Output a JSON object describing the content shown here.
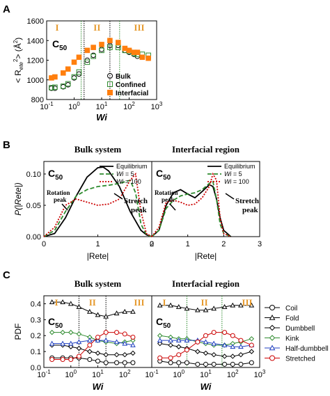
{
  "chart_data": [
    {
      "panel": "A",
      "type": "scatter",
      "ylabel_lines": [
        "< R",
        "ete",
        "2",
        "> (",
        "Å",
        "2",
        ")"
      ],
      "xlabel": "Wi",
      "xscale": "log",
      "xlim": [
        0.1,
        1000
      ],
      "ylim": [
        800,
        1600
      ],
      "yticks": [
        "800",
        "1000",
        "1200",
        "1400",
        "1600"
      ],
      "xticks": [
        "10-1",
        "100",
        "101",
        "102",
        "103"
      ],
      "regions": [
        "I",
        "II",
        "III"
      ],
      "chain_label": "C50",
      "series": [
        {
          "name": "Bulk",
          "marker": "circle",
          "color": "#000000",
          "x": [
            0.15,
            0.2,
            0.4,
            0.6,
            1.0,
            1.5,
            3,
            5,
            10,
            20,
            40,
            70,
            100,
            150,
            200,
            300,
            500
          ],
          "y": [
            915,
            915,
            930,
            950,
            1020,
            1060,
            1200,
            1250,
            1310,
            1350,
            1350,
            1300,
            1280,
            1260,
            1240,
            1230,
            1220
          ]
        },
        {
          "name": "Confined",
          "marker": "square",
          "color": "#2e8b2e",
          "x": [
            0.15,
            0.2,
            0.4,
            0.6,
            1.0,
            1.5,
            3,
            5,
            10,
            20,
            40,
            70,
            100,
            150,
            200,
            300,
            500
          ],
          "y": [
            920,
            925,
            935,
            960,
            1030,
            1080,
            1180,
            1240,
            1300,
            1330,
            1330,
            1300,
            1290,
            1270,
            1260,
            1260,
            1250
          ]
        },
        {
          "name": "Interfacial",
          "marker": "square-filled",
          "color": "#ff7f0e",
          "x": [
            0.15,
            0.2,
            0.4,
            0.6,
            1.0,
            1.5,
            3,
            5,
            10,
            20,
            40,
            70,
            100,
            150,
            200,
            300,
            500
          ],
          "y": [
            1020,
            1030,
            1070,
            1110,
            1180,
            1230,
            1300,
            1330,
            1360,
            1400,
            1380,
            1320,
            1300,
            1280,
            1280,
            1230,
            1220
          ]
        }
      ],
      "vlines": [
        {
          "x": 1.8,
          "color": "#2e8b2e",
          "style": "dotted"
        },
        {
          "x": 2.3,
          "color": "#000000",
          "style": "dotted"
        },
        {
          "x": 20,
          "color": "#000000",
          "style": "dotted"
        },
        {
          "x": 45,
          "color": "#2e8b2e",
          "style": "dotted"
        }
      ]
    },
    {
      "panel": "B",
      "type": "line",
      "subplots": [
        {
          "title": "Bulk system",
          "chain_label": "C50",
          "annotations": [
            "Rotation peak",
            "Stretch peak"
          ],
          "xlim": [
            0,
            2
          ],
          "xticks": [
            "0",
            "1",
            "2"
          ],
          "ylim": [
            0,
            0.12
          ],
          "yticks": [
            "0.00",
            "0.05",
            "0.10"
          ],
          "series": [
            {
              "name": "Equilibrium",
              "style": "solid",
              "color": "#000000",
              "x": [
                0,
                0.2,
                0.4,
                0.6,
                0.8,
                1.0,
                1.1,
                1.2,
                1.4,
                1.6,
                1.8,
                1.9,
                2.0
              ],
              "y": [
                0,
                0.005,
                0.03,
                0.065,
                0.095,
                0.11,
                0.111,
                0.105,
                0.08,
                0.04,
                0.01,
                0.003,
                0
              ]
            },
            {
              "name": "Wi = 5",
              "style": "dashed",
              "color": "#2e8b2e",
              "x": [
                0,
                0.2,
                0.4,
                0.6,
                0.8,
                1.0,
                1.2,
                1.4,
                1.6,
                1.7,
                1.8,
                1.9,
                2.0
              ],
              "y": [
                0,
                0.01,
                0.04,
                0.065,
                0.075,
                0.08,
                0.082,
                0.085,
                0.09,
                0.07,
                0.02,
                0.003,
                0
              ]
            },
            {
              "name": "Wi = 100",
              "style": "dotted",
              "color": "#cc0000",
              "x": [
                0,
                0.2,
                0.4,
                0.6,
                0.8,
                1.0,
                1.2,
                1.4,
                1.6,
                1.7,
                1.8,
                1.9,
                2.0
              ],
              "y": [
                0,
                0.015,
                0.05,
                0.06,
                0.055,
                0.05,
                0.052,
                0.06,
                0.09,
                0.1,
                0.04,
                0.005,
                0
              ]
            }
          ]
        },
        {
          "title": "Interfacial region",
          "chain_label": "C50",
          "annotations": [
            "Rotation peak",
            "Stretch peak"
          ],
          "xlim": [
            0,
            3
          ],
          "xticks": [
            "0",
            "1",
            "2",
            "3"
          ],
          "ylim": [
            0,
            0.12
          ],
          "series": [
            {
              "name": "Equilibrium",
              "style": "solid",
              "color": "#000000",
              "x": [
                0,
                0.2,
                0.4,
                0.6,
                0.8,
                1.0,
                1.2,
                1.4,
                1.6,
                1.7,
                1.8,
                1.9,
                2.0,
                2.2
              ],
              "y": [
                0,
                0.01,
                0.05,
                0.07,
                0.075,
                0.068,
                0.062,
                0.072,
                0.083,
                0.08,
                0.06,
                0.03,
                0.01,
                0
              ]
            },
            {
              "name": "Wi = 5",
              "style": "dashed",
              "color": "#2e8b2e",
              "x": [
                0,
                0.2,
                0.4,
                0.6,
                0.8,
                1.0,
                1.2,
                1.4,
                1.6,
                1.7,
                1.8,
                1.9,
                2.0,
                2.2
              ],
              "y": [
                0,
                0.01,
                0.045,
                0.058,
                0.065,
                0.068,
                0.07,
                0.075,
                0.085,
                0.088,
                0.06,
                0.02,
                0.005,
                0
              ]
            },
            {
              "name": "Wi = 100",
              "style": "dotted",
              "color": "#cc0000",
              "x": [
                0,
                0.2,
                0.4,
                0.6,
                0.8,
                1.0,
                1.2,
                1.4,
                1.6,
                1.7,
                1.8,
                1.9,
                2.0,
                2.2
              ],
              "y": [
                0,
                0.015,
                0.055,
                0.058,
                0.055,
                0.05,
                0.052,
                0.062,
                0.08,
                0.1,
                0.09,
                0.03,
                0.005,
                0
              ]
            }
          ]
        }
      ],
      "ylabel": "P(|Rete|)",
      "xlabel": "|Rete|"
    },
    {
      "panel": "C",
      "type": "line",
      "ylabel": "PDF",
      "xlabel": "Wi",
      "xscale": "log",
      "ylim": [
        0,
        0.45
      ],
      "yticks": [
        "0.0",
        "0.1",
        "0.2",
        "0.3",
        "0.4"
      ],
      "xticks": [
        "10-1",
        "100",
        "101",
        "102",
        "103"
      ],
      "legend": [
        {
          "name": "Coil",
          "marker": "circle",
          "color": "#000000"
        },
        {
          "name": "Fold",
          "marker": "triangle",
          "color": "#000000"
        },
        {
          "name": "Dumbbell",
          "marker": "diamond",
          "color": "#000000"
        },
        {
          "name": "Kink",
          "marker": "diamond",
          "color": "#2e8b2e"
        },
        {
          "name": "Half-dumbbell",
          "marker": "triangle",
          "color": "#1f3fbf"
        },
        {
          "name": "Stretched",
          "marker": "circle",
          "color": "#cc0000"
        }
      ],
      "subplots": [
        {
          "title": "Bulk system",
          "chain_label": "C50",
          "regions": [
            "I",
            "II",
            "III"
          ],
          "vlines": [
            2,
            20
          ],
          "x": [
            0.2,
            0.5,
            1,
            2,
            5,
            10,
            20,
            50,
            100,
            200
          ],
          "series": [
            {
              "name": "Coil",
              "y": [
                0.06,
                0.06,
                0.06,
                0.06,
                0.05,
                0.04,
                0.03,
                0.03,
                0.03,
                0.03
              ]
            },
            {
              "name": "Fold",
              "y": [
                0.41,
                0.41,
                0.4,
                0.38,
                0.35,
                0.33,
                0.32,
                0.34,
                0.35,
                0.35
              ]
            },
            {
              "name": "Dumbbell",
              "y": [
                0.14,
                0.14,
                0.13,
                0.12,
                0.1,
                0.09,
                0.08,
                0.08,
                0.08,
                0.09
              ]
            },
            {
              "name": "Kink",
              "y": [
                0.22,
                0.22,
                0.22,
                0.21,
                0.19,
                0.17,
                0.16,
                0.15,
                0.16,
                0.17
              ]
            },
            {
              "name": "Half-dumbbell",
              "y": [
                0.15,
                0.15,
                0.15,
                0.16,
                0.17,
                0.17,
                0.17,
                0.16,
                0.15,
                0.14
              ]
            },
            {
              "name": "Stretched",
              "y": [
                0.05,
                0.05,
                0.05,
                0.07,
                0.14,
                0.19,
                0.22,
                0.22,
                0.21,
                0.19
              ]
            }
          ]
        },
        {
          "title": "Interfacial region",
          "chain_label": "C50",
          "regions": [
            "I",
            "II",
            "III"
          ],
          "vlines": [
            2,
            40
          ],
          "x": [
            0.2,
            0.5,
            1,
            2,
            5,
            10,
            20,
            50,
            100,
            200,
            500
          ],
          "series": [
            {
              "name": "Coil",
              "y": [
                0.04,
                0.03,
                0.03,
                0.03,
                0.02,
                0.02,
                0.02,
                0.02,
                0.02,
                0.02,
                0.03
              ]
            },
            {
              "name": "Fold",
              "y": [
                0.39,
                0.39,
                0.38,
                0.37,
                0.36,
                0.36,
                0.37,
                0.38,
                0.39,
                0.39,
                0.39
              ]
            },
            {
              "name": "Dumbbell",
              "y": [
                0.15,
                0.14,
                0.13,
                0.12,
                0.1,
                0.09,
                0.08,
                0.07,
                0.07,
                0.08,
                0.1
              ]
            },
            {
              "name": "Kink",
              "y": [
                0.2,
                0.19,
                0.18,
                0.18,
                0.16,
                0.15,
                0.14,
                0.14,
                0.15,
                0.16,
                0.18
              ]
            },
            {
              "name": "Half-dumbbell",
              "y": [
                0.17,
                0.17,
                0.17,
                0.17,
                0.17,
                0.16,
                0.15,
                0.14,
                0.13,
                0.13,
                0.14
              ]
            },
            {
              "name": "Stretched",
              "y": [
                0.06,
                0.06,
                0.08,
                0.11,
                0.16,
                0.2,
                0.22,
                0.22,
                0.2,
                0.17,
                0.14
              ]
            }
          ]
        }
      ]
    }
  ],
  "panel_letters": [
    "A",
    "B",
    "C"
  ]
}
